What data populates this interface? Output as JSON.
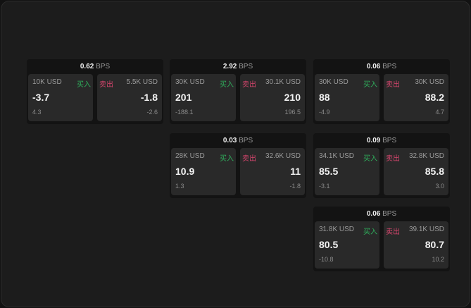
{
  "bps_unit": "BPS",
  "buy_label": "买入",
  "sell_label": "卖出",
  "colors": {
    "buy": "#2fae5c",
    "sell": "#d8466e"
  },
  "cards": [
    {
      "bps": "0.62",
      "bid": {
        "qty": "10K USD",
        "price": "-3.7",
        "change": "4.3"
      },
      "ask": {
        "qty": "5.5K USD",
        "price": "-1.8",
        "change": "-2.6"
      }
    },
    {
      "bps": "2.92",
      "bid": {
        "qty": "30K USD",
        "price": "201",
        "change": "-188.1"
      },
      "ask": {
        "qty": "30.1K USD",
        "price": "210",
        "change": "196.5"
      }
    },
    {
      "bps": "0.06",
      "bid": {
        "qty": "30K USD",
        "price": "88",
        "change": "-4.9"
      },
      "ask": {
        "qty": "30K USD",
        "price": "88.2",
        "change": "4.7"
      }
    },
    {
      "bps": "0.03",
      "bid": {
        "qty": "28K USD",
        "price": "10.9",
        "change": "1.3"
      },
      "ask": {
        "qty": "32.6K USD",
        "price": "11",
        "change": "-1.8"
      }
    },
    {
      "bps": "0.09",
      "bid": {
        "qty": "34.1K USD",
        "price": "85.5",
        "change": "-3.1"
      },
      "ask": {
        "qty": "32.8K USD",
        "price": "85.8",
        "change": "3.0"
      }
    },
    {
      "bps": "0.06",
      "bid": {
        "qty": "31.8K USD",
        "price": "80.5",
        "change": "-10.8"
      },
      "ask": {
        "qty": "39.1K USD",
        "price": "80.7",
        "change": "10.2"
      }
    }
  ]
}
